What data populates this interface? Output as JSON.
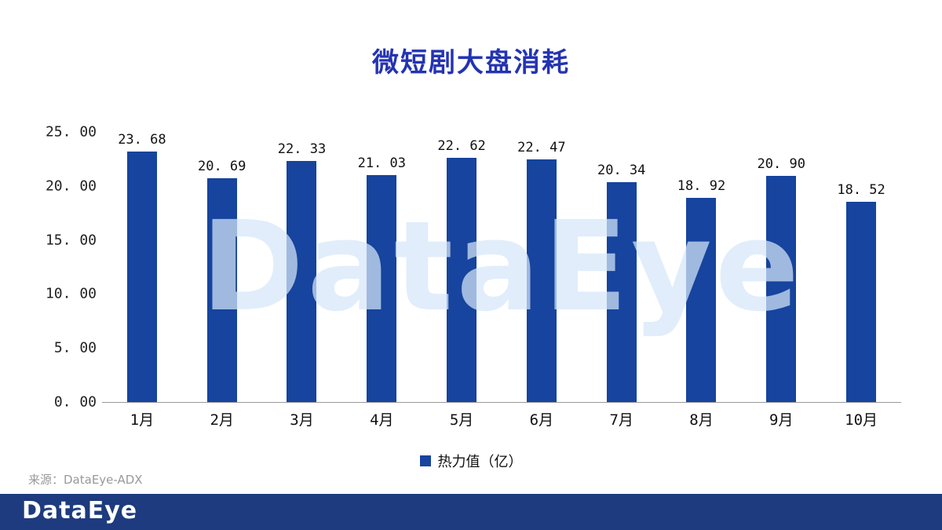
{
  "title": "微短剧大盘消耗",
  "chart_data": {
    "type": "bar",
    "title": "微短剧大盘消耗",
    "categories": [
      "1月",
      "2月",
      "3月",
      "4月",
      "5月",
      "6月",
      "7月",
      "8月",
      "9月",
      "10月"
    ],
    "values": [
      23.68,
      20.69,
      22.33,
      21.03,
      22.62,
      22.47,
      20.34,
      18.92,
      20.9,
      18.52
    ],
    "value_labels": [
      "23. 68",
      "20. 69",
      "22. 33",
      "21. 03",
      "22. 62",
      "22. 47",
      "20. 34",
      "18. 92",
      "20. 90",
      "18. 52"
    ],
    "ylim": [
      0,
      25
    ],
    "yticks": [
      "0. 00",
      "5. 00",
      "10. 00",
      "15. 00",
      "20. 00",
      "25. 00"
    ],
    "grid": false,
    "legend": "热力值（亿）",
    "legend_position": "bottom"
  },
  "watermark": "DataEye",
  "source": "来源：DataEye-ADX",
  "footer": {
    "logo": "DataEye"
  },
  "colors": {
    "bar": "#16449E",
    "title": "#2433B3",
    "footer_bg": "#1E3B7F",
    "watermark": "#D5E6F8",
    "source_text": "#999999"
  }
}
